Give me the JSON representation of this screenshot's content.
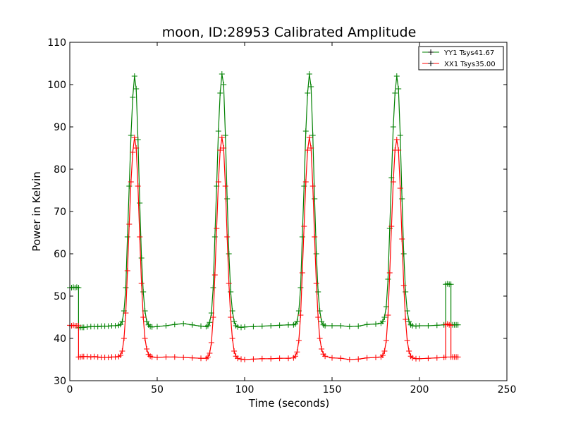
{
  "chart_data": {
    "type": "line",
    "title": "moon, ID:28953 Calibrated Amplitude",
    "xlabel": "Time (seconds)",
    "ylabel": "Power in Kelvin",
    "xlim": [
      0,
      250
    ],
    "ylim": [
      30,
      110
    ],
    "xticks": [
      "0",
      "50",
      "100",
      "150",
      "200",
      "250"
    ],
    "yticks": [
      "30",
      "40",
      "50",
      "60",
      "70",
      "80",
      "90",
      "100",
      "110"
    ],
    "grid": false,
    "legend_position": "top-right",
    "series": [
      {
        "name": "YY1 Tsys41.67",
        "color": "#008000",
        "marker": "+",
        "points": [
          [
            0,
            52.0
          ],
          [
            1,
            52.0
          ],
          [
            2,
            52.1
          ],
          [
            3,
            52.0
          ],
          [
            4,
            52.1
          ],
          [
            5,
            52.0
          ],
          [
            5,
            42.5
          ],
          [
            6,
            42.6
          ],
          [
            7,
            42.6
          ],
          [
            8,
            42.6
          ],
          [
            10,
            42.7
          ],
          [
            12,
            42.8
          ],
          [
            14,
            42.8
          ],
          [
            16,
            42.8
          ],
          [
            18,
            42.9
          ],
          [
            20,
            42.9
          ],
          [
            22,
            42.9
          ],
          [
            24,
            43.0
          ],
          [
            26,
            43.0
          ],
          [
            28,
            43.1
          ],
          [
            29,
            43.3
          ],
          [
            30,
            44.0
          ],
          [
            31,
            46.5
          ],
          [
            32,
            52.0
          ],
          [
            33,
            64.0
          ],
          [
            34,
            76.0
          ],
          [
            35,
            88.0
          ],
          [
            36,
            97.0
          ],
          [
            37,
            102.0
          ],
          [
            38,
            99.0
          ],
          [
            39,
            87.0
          ],
          [
            40,
            72.0
          ],
          [
            41,
            59.0
          ],
          [
            42,
            51.0
          ],
          [
            43,
            46.5
          ],
          [
            44,
            44.0
          ],
          [
            45,
            43.2
          ],
          [
            46,
            42.8
          ],
          [
            47,
            42.7
          ],
          [
            50,
            42.8
          ],
          [
            55,
            43.0
          ],
          [
            60,
            43.3
          ],
          [
            65,
            43.5
          ],
          [
            70,
            43.2
          ],
          [
            75,
            42.9
          ],
          [
            78,
            42.8
          ],
          [
            79,
            43.0
          ],
          [
            80,
            43.8
          ],
          [
            81,
            46.0
          ],
          [
            82,
            52.0
          ],
          [
            83,
            64.0
          ],
          [
            84,
            76.0
          ],
          [
            85,
            89.0
          ],
          [
            86,
            98.0
          ],
          [
            87,
            102.5
          ],
          [
            88,
            100.0
          ],
          [
            89,
            88.0
          ],
          [
            90,
            73.0
          ],
          [
            91,
            60.0
          ],
          [
            92,
            51.0
          ],
          [
            93,
            46.5
          ],
          [
            94,
            44.0
          ],
          [
            95,
            43.0
          ],
          [
            96,
            42.7
          ],
          [
            98,
            42.6
          ],
          [
            100,
            42.7
          ],
          [
            105,
            42.8
          ],
          [
            110,
            42.9
          ],
          [
            115,
            43.0
          ],
          [
            120,
            43.1
          ],
          [
            125,
            43.2
          ],
          [
            128,
            43.2
          ],
          [
            129,
            43.4
          ],
          [
            130,
            44.0
          ],
          [
            131,
            46.5
          ],
          [
            132,
            52.0
          ],
          [
            133,
            64.0
          ],
          [
            134,
            76.0
          ],
          [
            135,
            89.0
          ],
          [
            136,
            98.0
          ],
          [
            137,
            102.5
          ],
          [
            138,
            99.5
          ],
          [
            139,
            88.0
          ],
          [
            140,
            73.0
          ],
          [
            141,
            60.0
          ],
          [
            142,
            51.0
          ],
          [
            143,
            46.5
          ],
          [
            144,
            44.0
          ],
          [
            145,
            43.2
          ],
          [
            146,
            43.0
          ],
          [
            150,
            43.0
          ],
          [
            155,
            43.0
          ],
          [
            160,
            42.8
          ],
          [
            165,
            42.9
          ],
          [
            170,
            43.3
          ],
          [
            175,
            43.4
          ],
          [
            178,
            43.6
          ],
          [
            179,
            44.0
          ],
          [
            180,
            45.0
          ],
          [
            181,
            47.5
          ],
          [
            182,
            54.0
          ],
          [
            183,
            66.0
          ],
          [
            184,
            78.0
          ],
          [
            185,
            90.0
          ],
          [
            186,
            98.0
          ],
          [
            187,
            102.0
          ],
          [
            188,
            99.0
          ],
          [
            189,
            88.0
          ],
          [
            190,
            73.0
          ],
          [
            191,
            60.0
          ],
          [
            192,
            51.0
          ],
          [
            193,
            46.5
          ],
          [
            194,
            44.0
          ],
          [
            195,
            43.2
          ],
          [
            196,
            43.0
          ],
          [
            198,
            42.9
          ],
          [
            200,
            43.0
          ],
          [
            205,
            43.0
          ],
          [
            210,
            43.1
          ],
          [
            214,
            43.2
          ],
          [
            215,
            43.3
          ],
          [
            215,
            52.8
          ],
          [
            216,
            52.9
          ],
          [
            217,
            52.8
          ],
          [
            218,
            52.8
          ],
          [
            218,
            43.2
          ],
          [
            219,
            43.2
          ],
          [
            220,
            43.2
          ],
          [
            221,
            43.2
          ],
          [
            222,
            43.2
          ]
        ]
      },
      {
        "name": "XX1 Tsys35.00",
        "color": "#ff0000",
        "marker": "+",
        "points": [
          [
            0,
            43.1
          ],
          [
            1,
            43.0
          ],
          [
            2,
            43.1
          ],
          [
            3,
            43.0
          ],
          [
            4,
            43.0
          ],
          [
            5,
            43.0
          ],
          [
            5,
            35.6
          ],
          [
            6,
            35.6
          ],
          [
            7,
            35.7
          ],
          [
            8,
            35.7
          ],
          [
            10,
            35.7
          ],
          [
            12,
            35.6
          ],
          [
            14,
            35.7
          ],
          [
            16,
            35.6
          ],
          [
            18,
            35.5
          ],
          [
            20,
            35.5
          ],
          [
            22,
            35.5
          ],
          [
            24,
            35.6
          ],
          [
            26,
            35.6
          ],
          [
            28,
            35.7
          ],
          [
            29,
            36.0
          ],
          [
            30,
            37.0
          ],
          [
            31,
            40.0
          ],
          [
            32,
            46.0
          ],
          [
            33,
            56.0
          ],
          [
            34,
            67.0
          ],
          [
            35,
            77.0
          ],
          [
            36,
            84.0
          ],
          [
            37,
            87.5
          ],
          [
            38,
            85.0
          ],
          [
            39,
            76.0
          ],
          [
            40,
            64.0
          ],
          [
            41,
            53.0
          ],
          [
            42,
            45.0
          ],
          [
            43,
            40.0
          ],
          [
            44,
            37.5
          ],
          [
            45,
            36.2
          ],
          [
            46,
            35.8
          ],
          [
            47,
            35.6
          ],
          [
            50,
            35.5
          ],
          [
            55,
            35.6
          ],
          [
            60,
            35.6
          ],
          [
            65,
            35.5
          ],
          [
            70,
            35.4
          ],
          [
            75,
            35.3
          ],
          [
            78,
            35.3
          ],
          [
            79,
            35.6
          ],
          [
            80,
            36.5
          ],
          [
            81,
            39.0
          ],
          [
            82,
            45.0
          ],
          [
            83,
            55.0
          ],
          [
            84,
            66.0
          ],
          [
            85,
            77.0
          ],
          [
            86,
            84.5
          ],
          [
            87,
            87.5
          ],
          [
            88,
            85.0
          ],
          [
            89,
            76.0
          ],
          [
            90,
            64.0
          ],
          [
            91,
            53.0
          ],
          [
            92,
            45.0
          ],
          [
            93,
            40.0
          ],
          [
            94,
            37.0
          ],
          [
            95,
            35.8
          ],
          [
            96,
            35.3
          ],
          [
            98,
            35.1
          ],
          [
            100,
            35.0
          ],
          [
            105,
            35.1
          ],
          [
            110,
            35.2
          ],
          [
            115,
            35.2
          ],
          [
            120,
            35.3
          ],
          [
            125,
            35.3
          ],
          [
            128,
            35.4
          ],
          [
            129,
            35.8
          ],
          [
            130,
            36.8
          ],
          [
            131,
            39.5
          ],
          [
            132,
            45.5
          ],
          [
            133,
            55.5
          ],
          [
            134,
            66.5
          ],
          [
            135,
            77.0
          ],
          [
            136,
            84.5
          ],
          [
            137,
            87.5
          ],
          [
            138,
            85.0
          ],
          [
            139,
            76.0
          ],
          [
            140,
            64.0
          ],
          [
            141,
            53.0
          ],
          [
            142,
            45.0
          ],
          [
            143,
            40.0
          ],
          [
            144,
            37.5
          ],
          [
            145,
            36.3
          ],
          [
            146,
            35.8
          ],
          [
            150,
            35.4
          ],
          [
            155,
            35.3
          ],
          [
            160,
            35.0
          ],
          [
            165,
            35.1
          ],
          [
            170,
            35.4
          ],
          [
            175,
            35.5
          ],
          [
            178,
            35.6
          ],
          [
            179,
            36.0
          ],
          [
            180,
            37.0
          ],
          [
            181,
            39.5
          ],
          [
            182,
            45.5
          ],
          [
            183,
            55.5
          ],
          [
            184,
            66.5
          ],
          [
            185,
            77.0
          ],
          [
            186,
            84.5
          ],
          [
            187,
            87.0
          ],
          [
            188,
            84.5
          ],
          [
            189,
            75.5
          ],
          [
            190,
            63.5
          ],
          [
            191,
            52.5
          ],
          [
            192,
            44.5
          ],
          [
            193,
            39.5
          ],
          [
            194,
            37.0
          ],
          [
            195,
            35.8
          ],
          [
            196,
            35.4
          ],
          [
            198,
            35.2
          ],
          [
            200,
            35.2
          ],
          [
            205,
            35.3
          ],
          [
            210,
            35.4
          ],
          [
            214,
            35.5
          ],
          [
            215,
            35.6
          ],
          [
            215,
            43.3
          ],
          [
            216,
            43.4
          ],
          [
            217,
            43.2
          ],
          [
            218,
            43.1
          ],
          [
            218,
            35.6
          ],
          [
            219,
            35.6
          ],
          [
            220,
            35.6
          ],
          [
            221,
            35.6
          ],
          [
            222,
            35.6
          ]
        ]
      }
    ]
  }
}
